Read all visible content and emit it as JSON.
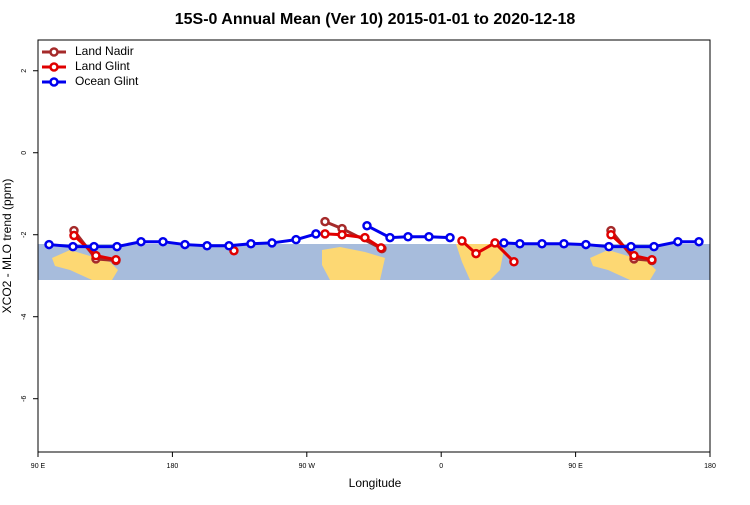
{
  "chart_data": {
    "type": "line",
    "title": "15S-0 Annual Mean (Ver 10)   2015-01-01 to 2020-12-18",
    "x_label": "Longitude",
    "y_label": "XCO2 - MLO trend (ppm)",
    "xlim": [
      90,
      540
    ],
    "xticks": [
      {
        "value": 90,
        "label": "90 E"
      },
      {
        "value": 180,
        "label": "180"
      },
      {
        "value": 270,
        "label": "90 W"
      },
      {
        "value": 360,
        "label": "0"
      },
      {
        "value": 450,
        "label": "90 E"
      },
      {
        "value": 540,
        "label": "180"
      }
    ],
    "ylim": [
      -7.3,
      2.75
    ],
    "yticks": [
      2,
      0,
      -2,
      -4,
      -6
    ],
    "legend": "top-left",
    "series": [
      {
        "name": "Land Nadir",
        "color": "#a52a2a",
        "x": [
          114.1,
          128.8,
          142.2,
          null,
          282.2,
          293.6,
          320.3,
          null,
          473.7,
          489.1,
          501.1
        ],
        "values": [
          -1.9,
          -2.59,
          -2.63,
          null,
          -1.68,
          -1.85,
          -2.34,
          null,
          -1.9,
          -2.59,
          -2.63
        ]
      },
      {
        "name": "Land Glint",
        "color": "#e00000",
        "x": [
          114.1,
          128.8,
          142.2,
          null,
          221.2,
          null,
          282.2,
          293.6,
          308.9,
          319.7,
          null,
          373.9,
          383.3,
          396.0,
          408.7,
          null,
          473.7,
          489.1,
          501.1
        ],
        "values": [
          -2.02,
          -2.51,
          -2.61,
          null,
          -2.39,
          null,
          -1.98,
          -2.0,
          -2.07,
          -2.32,
          null,
          -2.15,
          -2.46,
          -2.2,
          -2.66,
          null,
          -2.0,
          -2.51,
          -2.61
        ]
      },
      {
        "name": "Ocean Glint",
        "color": "#0000ee",
        "x": [
          97.4,
          113.4,
          127.5,
          142.9,
          159.0,
          173.7,
          188.4,
          203.2,
          217.9,
          232.6,
          246.7,
          262.8,
          276.1,
          null,
          310.3,
          325.7,
          337.8,
          351.8,
          365.9,
          null,
          402.0,
          412.7,
          427.5,
          442.2,
          456.9,
          472.3,
          487.1,
          502.5,
          518.5,
          532.6
        ],
        "values": [
          -2.24,
          -2.29,
          -2.29,
          -2.29,
          -2.17,
          -2.17,
          -2.24,
          -2.27,
          -2.27,
          -2.22,
          -2.2,
          -2.12,
          -1.98,
          null,
          -1.78,
          -2.07,
          -2.05,
          -2.05,
          -2.07,
          null,
          -2.2,
          -2.22,
          -2.22,
          -2.22,
          -2.24,
          -2.29,
          -2.29,
          -2.29,
          -2.17,
          -2.17
        ]
      }
    ]
  }
}
